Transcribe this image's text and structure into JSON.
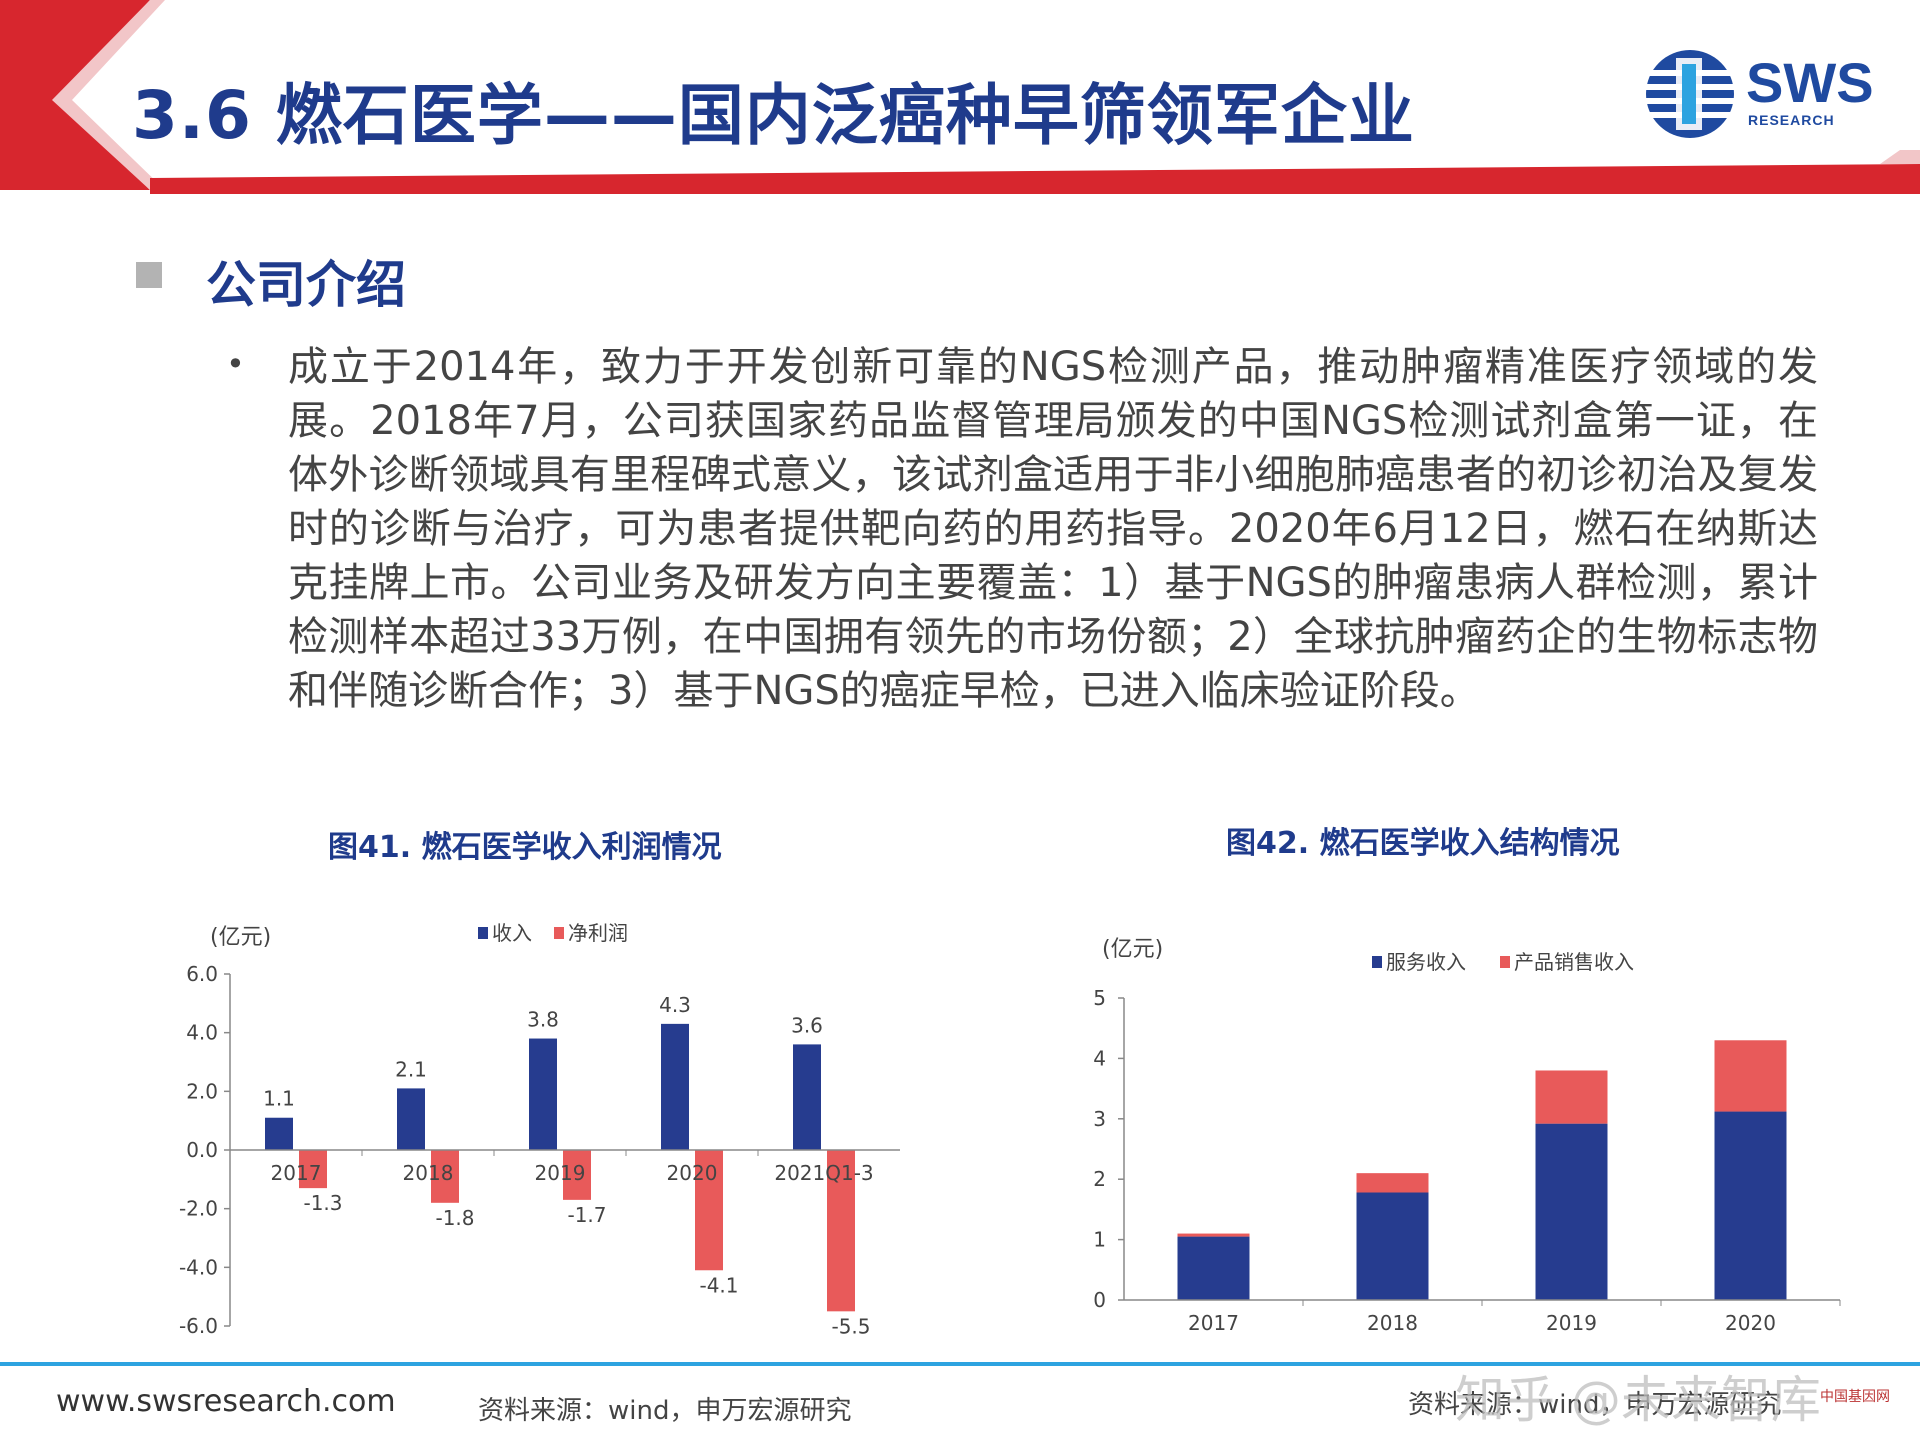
{
  "header": {
    "title": "3.6 燃石医学——国内泛癌种早筛领军企业",
    "logo_text": "SWS",
    "logo_sub": "RESEARCH",
    "accent_red": "#d7262e",
    "accent_blue": "#1f3b8c"
  },
  "section": {
    "title": "公司介绍",
    "bullet": "•",
    "body": "成立于2014年，致力于开发创新可靠的NGS检测产品，推动肿瘤精准医疗领域的发展。2018年7月，公司获国家药品监督管理局颁发的中国NGS检测试剂盒第一证，在体外诊断领域具有里程碑式意义，该试剂盒适用于非小细胞肺癌患者的初诊初治及复发时的诊断与治疗，可为患者提供靶向药的用药指导。2020年6月12日，燃石在纳斯达克挂牌上市。公司业务及研发方向主要覆盖：1）基于NGS的肿瘤患病人群检测，累计检测样本超过33万例，在中国拥有领先的市场份额；2）全球抗肿瘤药企的生物标志物和伴随诊断合作；3）基于NGS的癌症早检，已进入临床验证阶段。"
  },
  "chart_data": [
    {
      "type": "bar",
      "title": "图41. 燃石医学收入利润情况",
      "ylabel": "(亿元)",
      "categories": [
        "2017",
        "2018",
        "2019",
        "2020",
        "2021Q1-3"
      ],
      "series": [
        {
          "name": "收入",
          "values": [
            1.1,
            2.1,
            3.8,
            4.3,
            3.6
          ],
          "color": "#263c8f",
          "labels": [
            "1.1",
            "2.1",
            "3.8",
            "4.3",
            "3.6"
          ]
        },
        {
          "name": "净利润",
          "values": [
            -1.3,
            -1.8,
            -1.7,
            -4.1,
            -5.5
          ],
          "color": "#e85a5a",
          "labels": [
            "-1.3",
            "-1.8",
            "-1.7",
            "-4.1",
            "-5.5"
          ]
        }
      ],
      "ylim": [
        -6,
        6
      ],
      "yticks": [
        "6.0",
        "4.0",
        "2.0",
        "0.0",
        "-2.0",
        "-4.0",
        "-6.0"
      ],
      "legend": "top",
      "source": "资料来源：wind，申万宏源研究"
    },
    {
      "type": "bar",
      "stacked": true,
      "title": "图42. 燃石医学收入结构情况",
      "ylabel": "(亿元)",
      "categories": [
        "2017",
        "2018",
        "2019",
        "2020"
      ],
      "series": [
        {
          "name": "服务收入",
          "values": [
            1.05,
            1.78,
            2.92,
            3.12
          ],
          "color": "#263c8f"
        },
        {
          "name": "产品销售收入",
          "values": [
            0.05,
            0.32,
            0.88,
            1.18
          ],
          "color": "#e85a5a"
        }
      ],
      "ylim": [
        0,
        5
      ],
      "yticks": [
        "5",
        "4",
        "3",
        "2",
        "1",
        "0"
      ],
      "legend": "top",
      "source": "资料来源：wind，申万宏源研究"
    }
  ],
  "footer": {
    "url": "www.swsresearch.com",
    "watermark": "知乎 @未来智库",
    "corner_mark": "中国基因网"
  }
}
